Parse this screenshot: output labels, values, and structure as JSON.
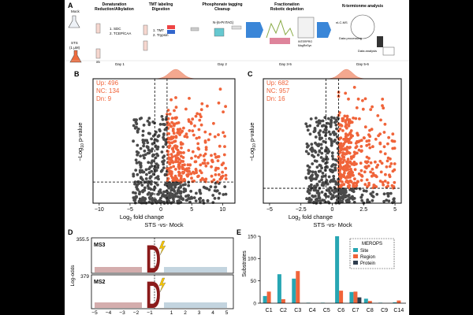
{
  "panel_letters": [
    "A",
    "B",
    "C",
    "D",
    "E"
  ],
  "workflow": {
    "samples": [
      "Mock",
      "STS",
      "(1 µM)",
      "x5"
    ],
    "steps": [
      {
        "title": "Denaturation",
        "subtitle": "Reduction/Alkylation",
        "notes": [
          "1. SDC",
          "2. TCEP/CAA"
        ],
        "day": "Day 1"
      },
      {
        "title": "TMT labeling",
        "subtitle": "Digestion",
        "notes": [
          "1. TMT",
          "2. Trypsin"
        ],
        "day": ""
      },
      {
        "title": "Phosphonate tagging",
        "subtitle": "Cleanup",
        "notes": [
          "N-(6-PnTAG)"
        ],
        "day": "Day 2"
      },
      {
        "title": "Fractionation",
        "subtitle": "Robotic depletion",
        "notes": [
          "INTERPRO",
          "MagReSyn"
        ],
        "day": "Day 3-5"
      },
      {
        "title": "N-termionme analysis",
        "subtitle": "",
        "notes": [
          "nLC-MS",
          "Data processing",
          "Data analysis"
        ],
        "day": "Day 5-6"
      }
    ]
  },
  "volcano": [
    {
      "id": "B",
      "type": "scatter",
      "stats": [
        "Up: 496",
        "NC: 134",
        "Dn: 9"
      ],
      "xlabel_main": "Log",
      "xlabel_sub": "2",
      "xlabel_rest": " fold change",
      "ylabel_pre": "−Log",
      "ylabel_sub": "10",
      "ylabel_post": " p-value",
      "subtitle": "STS -vs- Mock",
      "xlim": [
        -11,
        12
      ],
      "xticks": [
        -10,
        -5,
        0,
        5,
        10
      ],
      "ylim": [
        0,
        10
      ],
      "fc_lines": [
        -1,
        1
      ],
      "pval_line": 1.7,
      "colors": {
        "up": "#f0643a",
        "nc": "#4a4a4a"
      }
    },
    {
      "id": "C",
      "type": "scatter",
      "stats": [
        "Up: 682",
        "NC: 957",
        "Dn: 16"
      ],
      "xlabel_main": "Log",
      "xlabel_sub": "2",
      "xlabel_rest": " fold change",
      "ylabel_pre": "−Log",
      "ylabel_sub": "10",
      "ylabel_post": " p-value",
      "subtitle": "STS -vs- Mock",
      "xlim": [
        -5.5,
        5.5
      ],
      "xticks": [
        -5,
        -2.5,
        0,
        2.5,
        5
      ],
      "ylim": [
        0,
        10
      ],
      "fc_lines": [
        -0.5,
        0.5
      ],
      "pval_line": 1.2,
      "colors": {
        "up": "#f0643a",
        "nc": "#4a4a4a"
      }
    }
  ],
  "logo": {
    "ylabel": "Log-odds",
    "panels": [
      {
        "name": "MS3",
        "ymax": "355.5"
      },
      {
        "name": "MS2",
        "ymax": "379"
      }
    ],
    "positions": [
      "−5",
      "−4",
      "−3",
      "−2",
      "−1",
      "1",
      "2",
      "3",
      "4",
      "5"
    ],
    "residue": "D"
  },
  "chart_data": {
    "type": "bar",
    "title": "",
    "ylabel": "Substrates",
    "xlabel": "",
    "legend_title": "MEROPS",
    "categories": [
      "C1",
      "C2",
      "C3",
      "C4",
      "C5",
      "C6",
      "C7",
      "C8",
      "C9",
      "C14"
    ],
    "ylim": [
      0,
      150
    ],
    "yticks": [
      0,
      50,
      100,
      150
    ],
    "series": [
      {
        "name": "Site",
        "color": "#27a6b3",
        "values": [
          16,
          65,
          55,
          1,
          1,
          150,
          25,
          10,
          1,
          2
        ]
      },
      {
        "name": "Region",
        "color": "#f0643a",
        "values": [
          26,
          9,
          72,
          0,
          0,
          28,
          26,
          5,
          0,
          6
        ]
      },
      {
        "name": "Protein",
        "color": "#2f3e4e",
        "values": [
          0,
          0,
          0,
          0,
          0,
          0,
          13,
          0,
          0,
          0
        ]
      }
    ]
  }
}
